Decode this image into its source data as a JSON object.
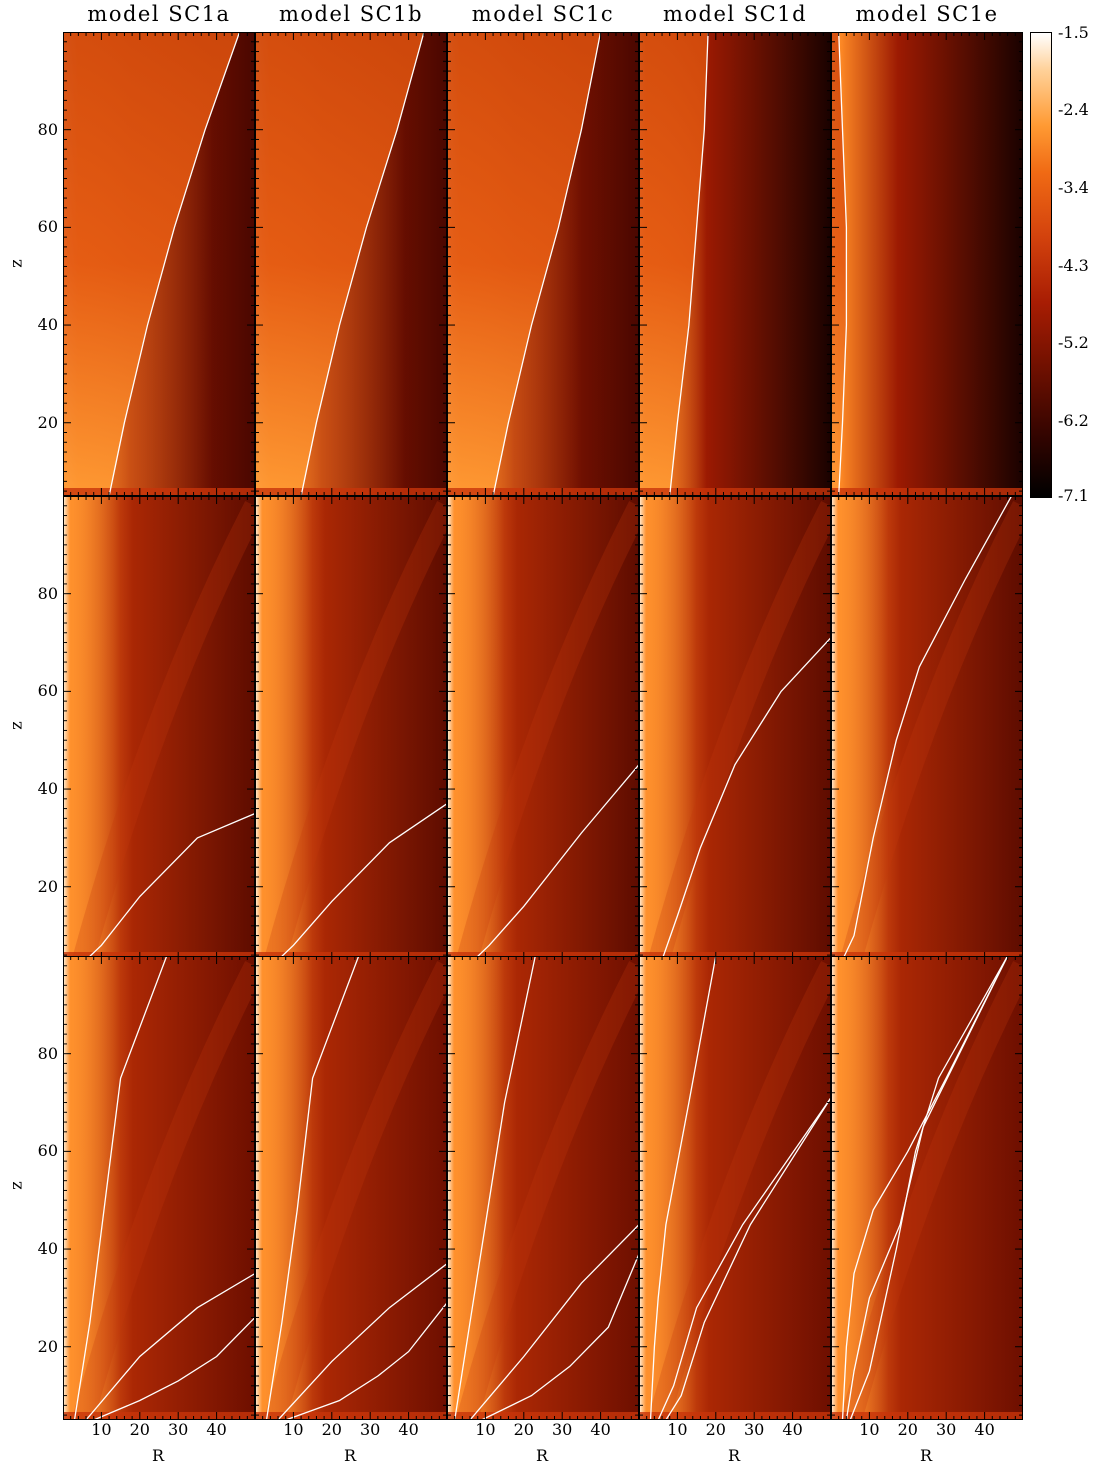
{
  "chart_data": {
    "type": "heatmap",
    "layout": {
      "rows": 3,
      "cols": 5
    },
    "columns": [
      "model SC1a",
      "model SC1b",
      "model SC1c",
      "model SC1d",
      "model SC1e"
    ],
    "xlabel": "R",
    "ylabel": "z",
    "xlim": [
      0,
      50
    ],
    "ylim": [
      5,
      100
    ],
    "xticks": [
      10,
      20,
      30,
      40
    ],
    "yticks": [
      20,
      40,
      60,
      80
    ],
    "colorbar": {
      "ticks": [
        "-1.5",
        "-2.4",
        "-3.4",
        "-4.3",
        "-5.2",
        "-6.2",
        "-7.1"
      ],
      "range": [
        -7.1,
        -1.5
      ],
      "colors": [
        "#ffffff",
        "#ffb35c",
        "#f36f1b",
        "#c63208",
        "#8a1200",
        "#3e0500",
        "#000000"
      ]
    },
    "line_color": "#ffffff",
    "panels": [
      [
        {
          "lines": [
            [
              [
                12,
                5
              ],
              [
                16,
                20
              ],
              [
                22,
                40
              ],
              [
                29,
                60
              ],
              [
                37,
                80
              ],
              [
                46,
                100
              ]
            ]
          ]
        },
        {
          "lines": [
            [
              [
                12,
                5
              ],
              [
                16,
                20
              ],
              [
                22,
                40
              ],
              [
                29,
                60
              ],
              [
                37,
                80
              ],
              [
                44,
                100
              ]
            ]
          ]
        },
        {
          "lines": [
            [
              [
                12,
                5
              ],
              [
                16,
                20
              ],
              [
                22,
                40
              ],
              [
                29,
                60
              ],
              [
                35,
                80
              ],
              [
                40,
                100
              ]
            ]
          ]
        },
        {
          "lines": [
            [
              [
                8,
                5
              ],
              [
                10,
                20
              ],
              [
                13,
                40
              ],
              [
                15,
                60
              ],
              [
                17,
                80
              ],
              [
                18,
                100
              ]
            ]
          ]
        },
        {
          "lines": [
            [
              [
                2,
                5
              ],
              [
                3,
                20
              ],
              [
                4,
                40
              ],
              [
                4,
                60
              ],
              [
                3,
                80
              ],
              [
                2,
                100
              ]
            ]
          ]
        }
      ],
      [
        {
          "lines": [
            [
              [
                6,
                5
              ],
              [
                10,
                8
              ],
              [
                20,
                18
              ],
              [
                35,
                30
              ],
              [
                50,
                35
              ]
            ]
          ]
        },
        {
          "lines": [
            [
              [
                6,
                5
              ],
              [
                10,
                8
              ],
              [
                20,
                17
              ],
              [
                35,
                29
              ],
              [
                50,
                37
              ]
            ]
          ]
        },
        {
          "lines": [
            [
              [
                7,
                5
              ],
              [
                11,
                8
              ],
              [
                20,
                16
              ],
              [
                35,
                31
              ],
              [
                50,
                45
              ]
            ]
          ]
        },
        {
          "lines": [
            [
              [
                6,
                5
              ],
              [
                10,
                14
              ],
              [
                16,
                28
              ],
              [
                25,
                45
              ],
              [
                37,
                60
              ],
              [
                50,
                71
              ]
            ]
          ]
        },
        {
          "lines": [
            [
              [
                3,
                5
              ],
              [
                6,
                10
              ],
              [
                11,
                30
              ],
              [
                17,
                50
              ],
              [
                23,
                65
              ],
              [
                35,
                83
              ],
              [
                47,
                100
              ]
            ]
          ]
        }
      ],
      [
        {
          "lines": [
            [
              [
                3,
                5
              ],
              [
                7,
                25
              ],
              [
                11,
                50
              ],
              [
                15,
                75
              ],
              [
                27,
                100
              ]
            ],
            [
              [
                6,
                5
              ],
              [
                20,
                18
              ],
              [
                35,
                28
              ],
              [
                50,
                35
              ]
            ],
            [
              [
                8,
                5
              ],
              [
                20,
                9
              ],
              [
                30,
                13
              ],
              [
                40,
                18
              ],
              [
                50,
                26
              ]
            ]
          ]
        },
        {
          "lines": [
            [
              [
                3,
                5
              ],
              [
                7,
                25
              ],
              [
                11,
                48
              ],
              [
                15,
                75
              ],
              [
                27,
                100
              ]
            ],
            [
              [
                6,
                5
              ],
              [
                20,
                17
              ],
              [
                35,
                28
              ],
              [
                50,
                37
              ]
            ],
            [
              [
                8,
                5
              ],
              [
                22,
                9
              ],
              [
                32,
                14
              ],
              [
                40,
                19
              ],
              [
                50,
                29
              ]
            ]
          ]
        },
        {
          "lines": [
            [
              [
                2,
                5
              ],
              [
                6,
                25
              ],
              [
                10,
                45
              ],
              [
                15,
                70
              ],
              [
                23,
                100
              ]
            ],
            [
              [
                6,
                5
              ],
              [
                20,
                18
              ],
              [
                35,
                33
              ],
              [
                50,
                45
              ]
            ],
            [
              [
                9,
                5
              ],
              [
                22,
                10
              ],
              [
                32,
                16
              ],
              [
                42,
                24
              ],
              [
                50,
                39
              ]
            ]
          ]
        },
        {
          "lines": [
            [
              [
                3,
                5
              ],
              [
                4,
                20
              ],
              [
                5,
                30
              ],
              [
                7,
                45
              ],
              [
                13,
                70
              ],
              [
                20,
                100
              ]
            ],
            [
              [
                5,
                5
              ],
              [
                9,
                12
              ],
              [
                15,
                28
              ],
              [
                27,
                45
              ],
              [
                50,
                71
              ]
            ],
            [
              [
                7,
                5
              ],
              [
                11,
                10
              ],
              [
                17,
                25
              ],
              [
                29,
                45
              ],
              [
                50,
                71
              ]
            ]
          ]
        },
        {
          "lines": [
            [
              [
                3,
                5
              ],
              [
                4,
                20
              ],
              [
                6,
                35
              ],
              [
                11,
                48
              ],
              [
                20,
                60
              ],
              [
                30,
                75
              ],
              [
                46,
                100
              ]
            ],
            [
              [
                4,
                5
              ],
              [
                6,
                15
              ],
              [
                10,
                30
              ],
              [
                18,
                45
              ],
              [
                24,
                65
              ],
              [
                46,
                100
              ]
            ],
            [
              [
                5,
                5
              ],
              [
                10,
                15
              ],
              [
                17,
                40
              ],
              [
                22,
                60
              ],
              [
                28,
                75
              ],
              [
                46,
                100
              ]
            ]
          ]
        }
      ]
    ]
  }
}
